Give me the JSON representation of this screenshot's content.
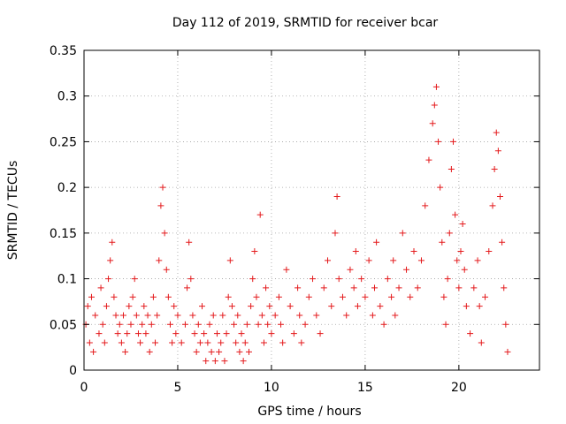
{
  "chart_data": {
    "type": "scatter",
    "title": "Day 112 of 2019, SRMTID for receiver bcar",
    "xlabel": "GPS time / hours",
    "ylabel": "SRMTID / TECUs",
    "xlim": [
      0,
      24.3
    ],
    "ylim": [
      0,
      0.35
    ],
    "xticks": [
      0,
      5,
      10,
      15,
      20
    ],
    "yticks": [
      0,
      0.05,
      0.1,
      0.15,
      0.2,
      0.25,
      0.3,
      0.35
    ],
    "xtick_labels": [
      "0",
      "5",
      "10",
      "15",
      "20"
    ],
    "ytick_labels": [
      "0",
      "0.05",
      "0.1",
      "0.15",
      "0.2",
      "0.25",
      "0.3",
      "0.35"
    ],
    "grid": true,
    "marker": "+",
    "color": "#e41a1c",
    "series": [
      {
        "name": "SRMTID",
        "points": [
          [
            0.1,
            0.05
          ],
          [
            0.2,
            0.07
          ],
          [
            0.3,
            0.03
          ],
          [
            0.4,
            0.08
          ],
          [
            0.5,
            0.02
          ],
          [
            0.6,
            0.06
          ],
          [
            0.8,
            0.04
          ],
          [
            0.9,
            0.09
          ],
          [
            1.0,
            0.05
          ],
          [
            1.1,
            0.03
          ],
          [
            1.2,
            0.07
          ],
          [
            1.3,
            0.1
          ],
          [
            1.4,
            0.12
          ],
          [
            1.5,
            0.14
          ],
          [
            1.6,
            0.08
          ],
          [
            1.7,
            0.06
          ],
          [
            1.8,
            0.04
          ],
          [
            1.9,
            0.05
          ],
          [
            2.0,
            0.03
          ],
          [
            2.1,
            0.06
          ],
          [
            2.2,
            0.02
          ],
          [
            2.3,
            0.04
          ],
          [
            2.4,
            0.07
          ],
          [
            2.5,
            0.05
          ],
          [
            2.6,
            0.08
          ],
          [
            2.7,
            0.1
          ],
          [
            2.8,
            0.06
          ],
          [
            2.9,
            0.04
          ],
          [
            3.0,
            0.03
          ],
          [
            3.1,
            0.05
          ],
          [
            3.2,
            0.07
          ],
          [
            3.3,
            0.04
          ],
          [
            3.4,
            0.06
          ],
          [
            3.5,
            0.02
          ],
          [
            3.6,
            0.05
          ],
          [
            3.7,
            0.08
          ],
          [
            3.8,
            0.03
          ],
          [
            3.9,
            0.06
          ],
          [
            4.0,
            0.12
          ],
          [
            4.1,
            0.18
          ],
          [
            4.2,
            0.2
          ],
          [
            4.3,
            0.15
          ],
          [
            4.4,
            0.11
          ],
          [
            4.5,
            0.08
          ],
          [
            4.6,
            0.05
          ],
          [
            4.7,
            0.03
          ],
          [
            4.8,
            0.07
          ],
          [
            4.9,
            0.04
          ],
          [
            5.0,
            0.06
          ],
          [
            5.2,
            0.03
          ],
          [
            5.4,
            0.05
          ],
          [
            5.5,
            0.09
          ],
          [
            5.6,
            0.14
          ],
          [
            5.7,
            0.1
          ],
          [
            5.8,
            0.06
          ],
          [
            5.9,
            0.04
          ],
          [
            6.0,
            0.02
          ],
          [
            6.1,
            0.05
          ],
          [
            6.2,
            0.03
          ],
          [
            6.3,
            0.07
          ],
          [
            6.4,
            0.04
          ],
          [
            6.5,
            0.01
          ],
          [
            6.6,
            0.03
          ],
          [
            6.7,
            0.05
          ],
          [
            6.8,
            0.02
          ],
          [
            6.9,
            0.06
          ],
          [
            7.0,
            0.01
          ],
          [
            7.1,
            0.04
          ],
          [
            7.2,
            0.02
          ],
          [
            7.3,
            0.03
          ],
          [
            7.4,
            0.06
          ],
          [
            7.5,
            0.01
          ],
          [
            7.6,
            0.04
          ],
          [
            7.7,
            0.08
          ],
          [
            7.8,
            0.12
          ],
          [
            7.9,
            0.07
          ],
          [
            8.0,
            0.05
          ],
          [
            8.1,
            0.03
          ],
          [
            8.2,
            0.06
          ],
          [
            8.3,
            0.02
          ],
          [
            8.4,
            0.04
          ],
          [
            8.5,
            0.01
          ],
          [
            8.6,
            0.03
          ],
          [
            8.7,
            0.05
          ],
          [
            8.8,
            0.02
          ],
          [
            8.9,
            0.07
          ],
          [
            9.0,
            0.1
          ],
          [
            9.1,
            0.13
          ],
          [
            9.2,
            0.08
          ],
          [
            9.3,
            0.05
          ],
          [
            9.4,
            0.17
          ],
          [
            9.5,
            0.06
          ],
          [
            9.6,
            0.03
          ],
          [
            9.7,
            0.09
          ],
          [
            9.8,
            0.05
          ],
          [
            9.9,
            0.07
          ],
          [
            10.0,
            0.04
          ],
          [
            10.2,
            0.06
          ],
          [
            10.4,
            0.08
          ],
          [
            10.5,
            0.05
          ],
          [
            10.6,
            0.03
          ],
          [
            10.8,
            0.11
          ],
          [
            11.0,
            0.07
          ],
          [
            11.2,
            0.04
          ],
          [
            11.4,
            0.09
          ],
          [
            11.5,
            0.06
          ],
          [
            11.6,
            0.03
          ],
          [
            11.8,
            0.05
          ],
          [
            12.0,
            0.08
          ],
          [
            12.2,
            0.1
          ],
          [
            12.4,
            0.06
          ],
          [
            12.6,
            0.04
          ],
          [
            12.8,
            0.09
          ],
          [
            13.0,
            0.12
          ],
          [
            13.2,
            0.07
          ],
          [
            13.4,
            0.15
          ],
          [
            13.5,
            0.19
          ],
          [
            13.6,
            0.1
          ],
          [
            13.8,
            0.08
          ],
          [
            14.0,
            0.06
          ],
          [
            14.2,
            0.11
          ],
          [
            14.4,
            0.09
          ],
          [
            14.5,
            0.13
          ],
          [
            14.6,
            0.07
          ],
          [
            14.8,
            0.1
          ],
          [
            15.0,
            0.08
          ],
          [
            15.2,
            0.12
          ],
          [
            15.4,
            0.06
          ],
          [
            15.5,
            0.09
          ],
          [
            15.6,
            0.14
          ],
          [
            15.8,
            0.07
          ],
          [
            16.0,
            0.05
          ],
          [
            16.2,
            0.1
          ],
          [
            16.4,
            0.08
          ],
          [
            16.5,
            0.12
          ],
          [
            16.6,
            0.06
          ],
          [
            16.8,
            0.09
          ],
          [
            17.0,
            0.15
          ],
          [
            17.2,
            0.11
          ],
          [
            17.4,
            0.08
          ],
          [
            17.6,
            0.13
          ],
          [
            17.8,
            0.09
          ],
          [
            18.0,
            0.12
          ],
          [
            18.2,
            0.18
          ],
          [
            18.4,
            0.23
          ],
          [
            18.6,
            0.27
          ],
          [
            18.7,
            0.29
          ],
          [
            18.8,
            0.31
          ],
          [
            18.9,
            0.25
          ],
          [
            19.0,
            0.2
          ],
          [
            19.1,
            0.14
          ],
          [
            19.2,
            0.08
          ],
          [
            19.3,
            0.05
          ],
          [
            19.4,
            0.1
          ],
          [
            19.5,
            0.15
          ],
          [
            19.6,
            0.22
          ],
          [
            19.7,
            0.25
          ],
          [
            19.8,
            0.17
          ],
          [
            19.9,
            0.12
          ],
          [
            20.0,
            0.09
          ],
          [
            20.1,
            0.13
          ],
          [
            20.2,
            0.16
          ],
          [
            20.3,
            0.11
          ],
          [
            20.4,
            0.07
          ],
          [
            20.6,
            0.04
          ],
          [
            20.8,
            0.09
          ],
          [
            21.0,
            0.12
          ],
          [
            21.1,
            0.07
          ],
          [
            21.2,
            0.03
          ],
          [
            21.4,
            0.08
          ],
          [
            21.6,
            0.13
          ],
          [
            21.8,
            0.18
          ],
          [
            21.9,
            0.22
          ],
          [
            22.0,
            0.26
          ],
          [
            22.1,
            0.24
          ],
          [
            22.2,
            0.19
          ],
          [
            22.3,
            0.14
          ],
          [
            22.4,
            0.09
          ],
          [
            22.5,
            0.05
          ],
          [
            22.6,
            0.02
          ]
        ]
      }
    ]
  }
}
